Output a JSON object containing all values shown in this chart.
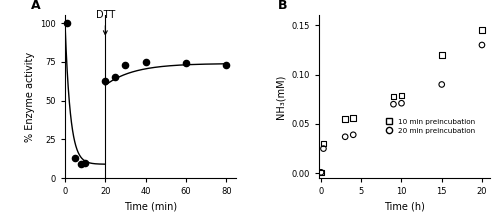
{
  "panel_A": {
    "label": "A",
    "scatter_x": [
      1,
      5,
      8,
      10,
      20,
      25,
      30,
      40,
      60,
      80
    ],
    "scatter_y": [
      100,
      13,
      9,
      10,
      63,
      65,
      73,
      75,
      74,
      73
    ],
    "dtt_x": 20,
    "dtt_label": "DTT",
    "xlabel": "Time (min)",
    "ylabel": "% Enzyme activity",
    "xlim": [
      0,
      85
    ],
    "ylim": [
      0,
      105
    ],
    "xticks": [
      0,
      20,
      40,
      60,
      80
    ],
    "yticks": [
      0,
      25,
      50,
      75,
      100
    ],
    "inh_a": 9,
    "inh_b": 91,
    "inh_k": 0.38,
    "rec_plateau": 74,
    "rec_drop": 14,
    "rec_k": 0.07
  },
  "panel_B": {
    "label": "B",
    "sq_x": [
      0,
      0.3,
      3,
      4,
      9,
      10,
      15,
      20
    ],
    "sq_y": [
      0.001,
      0.03,
      0.055,
      0.056,
      0.078,
      0.079,
      0.12,
      0.145
    ],
    "ci_x": [
      0,
      0.3,
      3,
      4,
      9,
      10,
      15,
      20
    ],
    "ci_y": [
      0.001,
      0.025,
      0.037,
      0.039,
      0.07,
      0.071,
      0.09,
      0.13
    ],
    "xlabel": "Time (h)",
    "ylabel": "NH₃(mM)",
    "xlim": [
      -0.3,
      21
    ],
    "ylim": [
      -0.005,
      0.16
    ],
    "xticks": [
      0,
      5,
      10,
      15,
      20
    ],
    "yticks": [
      0.0,
      0.05,
      0.1,
      0.15
    ],
    "legend_sq": "10 min preincubation",
    "legend_ci": "20 min preincubation"
  }
}
